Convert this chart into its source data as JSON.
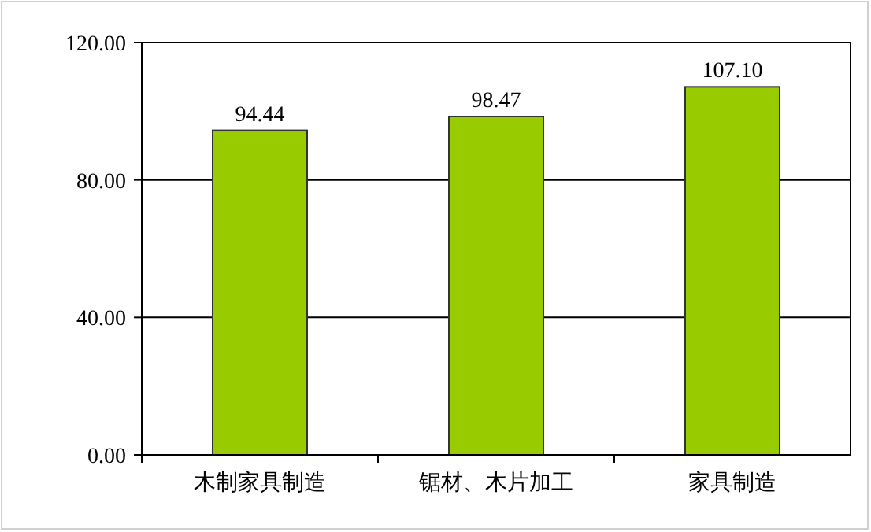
{
  "chart_data": {
    "type": "bar",
    "categories": [
      "木制家具制造",
      "锯材、木片加工",
      "家具制造"
    ],
    "values": [
      94.44,
      98.47,
      107.1
    ],
    "value_labels": [
      "94.44",
      "98.47",
      "107.10"
    ],
    "color": "#99cc00",
    "ylim": [
      0,
      120
    ],
    "yticks": [
      {
        "value": 0,
        "label": "0.00"
      },
      {
        "value": 40,
        "label": "40.00"
      },
      {
        "value": 80,
        "label": "80.00"
      },
      {
        "value": 120,
        "label": "120.00"
      }
    ],
    "grid": "y"
  }
}
